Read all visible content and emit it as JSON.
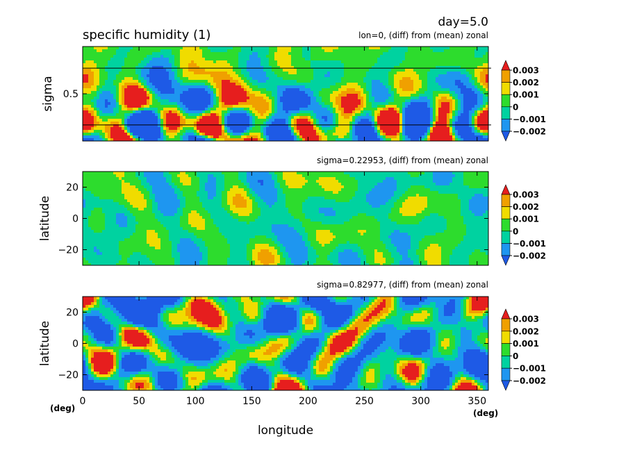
{
  "header": {
    "title": "specific humidity (1)",
    "day": "day=5.0"
  },
  "colors": {
    "levels": [
      "#1e5ae6",
      "#1e96f0",
      "#00d2a0",
      "#2ddc2d",
      "#f0dc00",
      "#f0a000",
      "#e61e1e"
    ],
    "lines": "#000000"
  },
  "colorbar": {
    "labels": [
      "0.003",
      "0.002",
      "0.001",
      "0",
      "−0.001",
      "−0.002"
    ]
  },
  "chart_data": [
    {
      "type": "heatmap",
      "name": "vertical-section",
      "subtitle": "lon=0, (diff) from (mean) zonal",
      "xlabel": "",
      "ylabel": "sigma",
      "xlim": [
        0,
        360
      ],
      "ylim": [
        1,
        0
      ],
      "yticks": [
        {
          "value": 0.5,
          "label": "0.5"
        }
      ],
      "reference_lines": [
        0.229,
        0.83
      ],
      "levels": [
        -0.002,
        -0.001,
        0,
        0.001,
        0.002,
        0.003
      ],
      "character": "strong positive cells near surface, mostly neutral aloft"
    },
    {
      "type": "heatmap",
      "name": "map-upper",
      "subtitle": "sigma=0.22953, (diff) from (mean) zonal",
      "xlabel": "",
      "ylabel": "latitude",
      "xlim": [
        0,
        360
      ],
      "ylim": [
        -30,
        30
      ],
      "yticks": [
        {
          "value": 20,
          "label": "20"
        },
        {
          "value": 0,
          "label": "0"
        },
        {
          "value": -20,
          "label": "−20"
        }
      ],
      "levels": [
        -0.002,
        -0.001,
        0,
        0.001,
        0.002,
        0.003
      ],
      "character": "values near zero (cyan/green)"
    },
    {
      "type": "heatmap",
      "name": "map-lower",
      "subtitle": "sigma=0.82977, (diff) from (mean) zonal",
      "xlabel": "longitude",
      "ylabel": "latitude",
      "xlim": [
        0,
        360
      ],
      "ylim": [
        -30,
        30
      ],
      "yticks": [
        {
          "value": 20,
          "label": "20"
        },
        {
          "value": 0,
          "label": "0"
        },
        {
          "value": -20,
          "label": "−20"
        }
      ],
      "xticks": [
        {
          "value": 0,
          "label": "0"
        },
        {
          "value": 50,
          "label": "50"
        },
        {
          "value": 100,
          "label": "100"
        },
        {
          "value": 150,
          "label": "150"
        },
        {
          "value": 200,
          "label": "200"
        },
        {
          "value": 250,
          "label": "250"
        },
        {
          "value": 300,
          "label": "300"
        },
        {
          "value": 350,
          "label": "350"
        }
      ],
      "xunit_left": "(deg)",
      "xunit_right": "(deg)",
      "levels": [
        -0.002,
        -0.001,
        0,
        0.001,
        0.002,
        0.003
      ],
      "character": "large amplitude blobs from −0.002 to 0.003"
    }
  ]
}
